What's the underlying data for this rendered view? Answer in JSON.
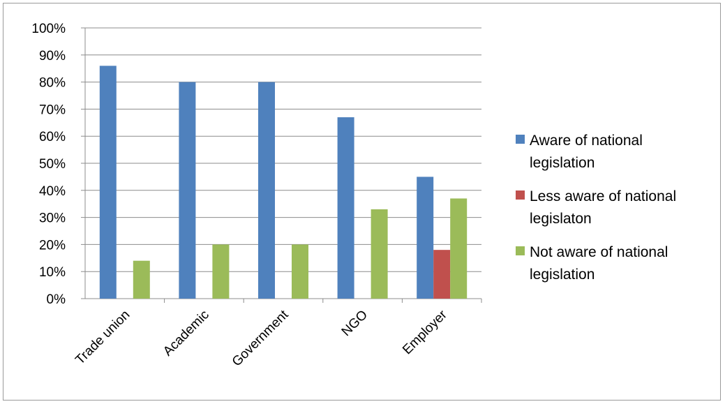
{
  "chart_data": {
    "type": "bar",
    "categories": [
      "Trade union",
      "Academic",
      "Government",
      "NGO",
      "Employer"
    ],
    "series": [
      {
        "name": "Aware of national legislation",
        "legend_lines": [
          "Aware of national",
          "legislation"
        ],
        "color": "#4f81bd",
        "values": [
          86,
          80,
          80,
          67,
          45
        ]
      },
      {
        "name": "Less aware of national legislaton",
        "legend_lines": [
          "Less aware of national",
          "legislaton"
        ],
        "color": "#c0504d",
        "values": [
          0,
          0,
          0,
          0,
          18
        ]
      },
      {
        "name": "Not aware of national legislation",
        "legend_lines": [
          "Not aware of national",
          "legislation"
        ],
        "color": "#9bbb59",
        "values": [
          14,
          20,
          20,
          33,
          37
        ]
      }
    ],
    "y_ticks": [
      "0%",
      "10%",
      "20%",
      "30%",
      "40%",
      "50%",
      "60%",
      "70%",
      "80%",
      "90%",
      "100%"
    ],
    "ylim": [
      0,
      100
    ],
    "title": "",
    "xlabel": "",
    "ylabel": "",
    "grid": true,
    "legend_position": "right"
  }
}
